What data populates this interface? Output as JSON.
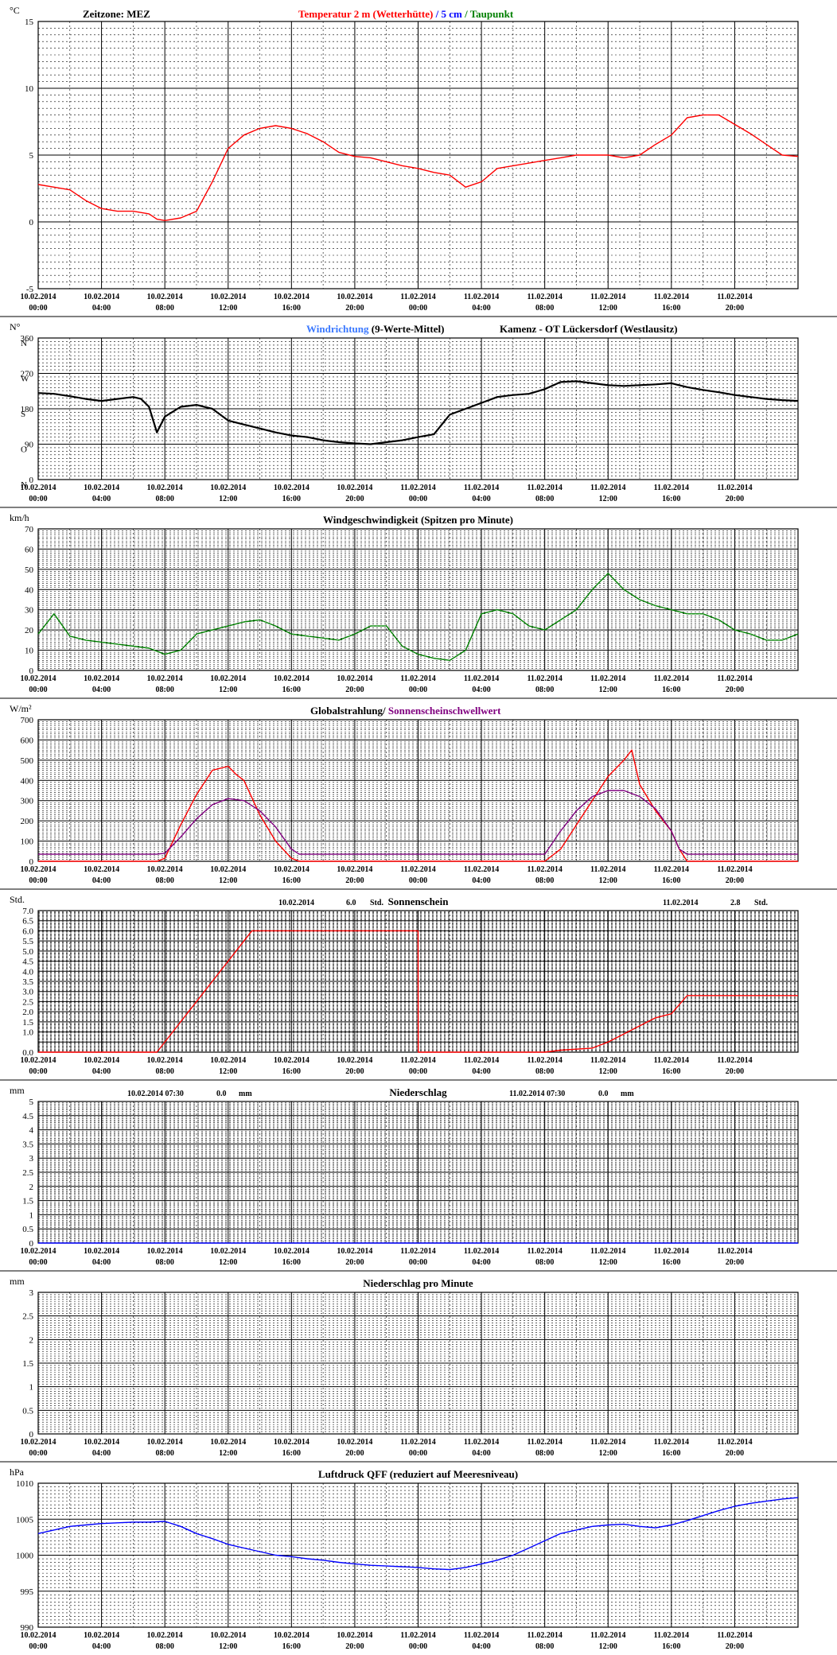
{
  "x_ticks": [
    "10.02.2014|00:00",
    "10.02.2014|04:00",
    "10.02.2014|08:00",
    "10.02.2014|12:00",
    "10.02.2014|16:00",
    "10.02.2014|20:00",
    "11.02.2014|00:00",
    "11.02.2014|04:00",
    "11.02.2014|08:00",
    "11.02.2014|12:00",
    "11.02.2014|16:00",
    "11.02.2014|20:00"
  ],
  "colors": {
    "red": "#ff0000",
    "blue": "#0000ff",
    "lightblue": "#3a78ff",
    "green": "#008000",
    "purple": "#800080",
    "black": "#000000",
    "grid": "#000000"
  },
  "chart_data": [
    {
      "type": "line",
      "unit": "°C",
      "zone_label": "Zeitzone: MEZ",
      "title_parts": [
        {
          "text": "Temperatur 2 m (Wetterhütte)",
          "color": "#ff0000"
        },
        {
          "text": "  /  ",
          "color": "#0000ff"
        },
        {
          "text": "5 cm",
          "color": "#0000ff"
        },
        {
          "text": " / ",
          "color": "#008000"
        },
        {
          "text": "Taupunkt",
          "color": "#008000"
        }
      ],
      "ylim": [
        -5,
        15
      ],
      "yticks": [
        -5,
        0,
        5,
        10,
        15
      ],
      "series": [
        {
          "color": "#ff0000",
          "x": [
            0,
            1,
            2,
            3,
            4,
            5,
            6,
            7,
            7.5,
            8,
            9,
            10,
            11,
            12,
            13,
            14,
            15,
            16,
            17,
            18,
            19,
            20,
            21,
            22,
            23,
            24,
            25,
            26,
            27,
            28,
            29,
            30,
            31,
            32,
            33,
            34,
            35,
            36,
            37,
            38,
            39,
            40,
            41,
            42,
            43,
            44,
            45,
            46,
            47,
            48
          ],
          "values": [
            2.8,
            2.6,
            2.4,
            1.6,
            1.0,
            0.8,
            0.8,
            0.6,
            0.2,
            0.1,
            0.3,
            0.8,
            3.0,
            5.5,
            6.5,
            7.0,
            7.2,
            7.0,
            6.6,
            6.0,
            5.2,
            4.9,
            4.8,
            4.5,
            4.2,
            4.0,
            3.7,
            3.5,
            2.6,
            3.0,
            4.0,
            4.2,
            4.4,
            4.6,
            4.8,
            5.0,
            5.0,
            5.0,
            4.8,
            5.0,
            5.8,
            6.5,
            7.8,
            8.0,
            8.0,
            7.3,
            6.6,
            5.8,
            5.0,
            4.9
          ]
        }
      ]
    },
    {
      "type": "line",
      "unit": "N°",
      "title_parts": [
        {
          "text": "Windrichtung",
          "color": "#3a78ff"
        },
        {
          "text": " (9-Werte-Mittel)",
          "color": "#000000"
        }
      ],
      "station": "Kamenz - OT Lückersdorf (Westlausitz)",
      "ylim": [
        0,
        360
      ],
      "yticks": [
        0,
        90,
        180,
        270,
        360
      ],
      "ytick_letters": [
        [
          0,
          "N"
        ],
        [
          90,
          "O"
        ],
        [
          180,
          "S"
        ],
        [
          270,
          "W"
        ],
        [
          360,
          "N"
        ]
      ],
      "series": [
        {
          "color": "#000000",
          "x": [
            0,
            1,
            2,
            3,
            4,
            5,
            6,
            6.5,
            7,
            7.5,
            8,
            9,
            10,
            11,
            12,
            13,
            14,
            15,
            16,
            17,
            18,
            19,
            20,
            21,
            22,
            23,
            24,
            25,
            26,
            27,
            28,
            29,
            30,
            31,
            32,
            33,
            34,
            35,
            36,
            37,
            38,
            39,
            40,
            41,
            42,
            43,
            44,
            45,
            46,
            47,
            48
          ],
          "values": [
            220,
            218,
            212,
            205,
            200,
            205,
            210,
            205,
            185,
            120,
            160,
            185,
            190,
            180,
            150,
            140,
            130,
            120,
            112,
            108,
            100,
            95,
            92,
            90,
            95,
            100,
            108,
            115,
            165,
            180,
            195,
            210,
            215,
            218,
            230,
            248,
            250,
            245,
            240,
            238,
            240,
            242,
            245,
            235,
            228,
            222,
            215,
            210,
            205,
            202,
            200
          ]
        }
      ]
    },
    {
      "type": "line",
      "unit": "km/h",
      "title": "Windgeschwindigkeit (Spitzen pro Minute)",
      "ylim": [
        0,
        70
      ],
      "yticks": [
        0,
        10,
        20,
        30,
        40,
        50,
        60,
        70
      ],
      "series": [
        {
          "color": "#008000",
          "x": [
            0,
            1,
            2,
            3,
            4,
            5,
            6,
            7,
            8,
            9,
            10,
            11,
            12,
            13,
            14,
            15,
            16,
            17,
            18,
            19,
            20,
            21,
            22,
            23,
            24,
            25,
            26,
            27,
            28,
            29,
            30,
            31,
            32,
            33,
            34,
            35,
            36,
            37,
            38,
            39,
            40,
            41,
            42,
            43,
            44,
            45,
            46,
            47,
            48
          ],
          "values": [
            18,
            28,
            17,
            15,
            14,
            13,
            12,
            11,
            8,
            10,
            18,
            20,
            22,
            24,
            25,
            22,
            18,
            17,
            16,
            15,
            18,
            22,
            22,
            12,
            8,
            6,
            5,
            10,
            28,
            30,
            28,
            22,
            20,
            25,
            30,
            40,
            48,
            40,
            35,
            32,
            30,
            28,
            28,
            25,
            20,
            18,
            15,
            15,
            18
          ]
        }
      ]
    },
    {
      "type": "line",
      "unit": "W/m²",
      "title_parts": [
        {
          "text": "Globalstrahlung/ ",
          "color": "#000000"
        },
        {
          "text": "Sonnenscheinschwellwert",
          "color": "#800080"
        }
      ],
      "ylim": [
        0,
        700
      ],
      "yticks": [
        0,
        100,
        200,
        300,
        400,
        500,
        600,
        700
      ],
      "series": [
        {
          "color": "#ff0000",
          "x": [
            0,
            7.5,
            8,
            9,
            10,
            11,
            12,
            12.5,
            13,
            14,
            15,
            16,
            16.5,
            32,
            33,
            34,
            35,
            36,
            37,
            37.5,
            38,
            39,
            40,
            40.5,
            41,
            48
          ],
          "values": [
            0,
            0,
            15,
            180,
            330,
            450,
            470,
            430,
            400,
            230,
            100,
            15,
            0,
            0,
            60,
            180,
            300,
            420,
            500,
            550,
            380,
            250,
            150,
            60,
            0,
            0
          ]
        },
        {
          "color": "#800080",
          "x": [
            0,
            7.5,
            8,
            9,
            10,
            11,
            12,
            13,
            14,
            15,
            16,
            16.5,
            32,
            33,
            34,
            35,
            36,
            37,
            38,
            39,
            40,
            40.5,
            41,
            48
          ],
          "values": [
            35,
            35,
            40,
            120,
            210,
            280,
            310,
            300,
            250,
            170,
            60,
            35,
            35,
            150,
            250,
            320,
            350,
            350,
            320,
            260,
            150,
            60,
            35,
            35
          ]
        }
      ]
    },
    {
      "type": "line",
      "unit": "Std.",
      "title": "Sonnenschein",
      "annotations": [
        {
          "date": "10.02.2014",
          "value": "6.0",
          "unit": "Std."
        },
        {
          "date": "11.02.2014",
          "value": "2.8",
          "unit": "Std."
        }
      ],
      "ylim": [
        0,
        7
      ],
      "yticks": [
        0.0,
        0.5,
        1.0,
        1.5,
        2.0,
        2.5,
        3.0,
        3.5,
        4.0,
        4.5,
        5.0,
        5.5,
        6.0,
        6.5,
        7.0
      ],
      "ytick_labels": [
        "0.0",
        "",
        "1.0",
        "1.5",
        "2.0",
        "2.5",
        "3.0",
        "3.5",
        "4.0",
        "4.5",
        "5.0",
        "5.5",
        "6.0",
        "6.5",
        "7.0"
      ],
      "series": [
        {
          "color": "#ff0000",
          "x": [
            0,
            7.5,
            13.5,
            24,
            24.01,
            32,
            33,
            35,
            36,
            37,
            38,
            39,
            40,
            41,
            48
          ],
          "values": [
            0,
            0,
            6.0,
            6.0,
            0,
            0,
            0.1,
            0.2,
            0.5,
            0.9,
            1.3,
            1.7,
            1.9,
            2.8,
            2.8
          ]
        }
      ]
    },
    {
      "type": "line",
      "unit": "mm",
      "title": "Niederschlag",
      "annotations": [
        {
          "date": "10.02.2014 07:30",
          "value": "0.0",
          "unit": "mm"
        },
        {
          "date": "11.02.2014 07:30",
          "value": "0.0",
          "unit": "mm"
        }
      ],
      "ylim": [
        0,
        5
      ],
      "yticks": [
        0.0,
        0.5,
        1.0,
        1.5,
        2.0,
        2.5,
        3.0,
        3.5,
        4.0,
        4.5,
        5.0
      ],
      "series": [
        {
          "color": "#0000ff",
          "x": [
            0,
            48
          ],
          "values": [
            0,
            0
          ]
        }
      ]
    },
    {
      "type": "line",
      "unit": "mm",
      "title": "Niederschlag pro Minute",
      "ylim": [
        0,
        3
      ],
      "yticks": [
        0.0,
        0.5,
        1.0,
        1.5,
        2.0,
        2.5,
        3.0
      ],
      "series": []
    },
    {
      "type": "line",
      "unit": "hPa",
      "title": "Luftdruck QFF (reduziert auf Meeresniveau)",
      "ylim": [
        990,
        1010
      ],
      "yticks": [
        990,
        995,
        1000,
        1005,
        1010
      ],
      "series": [
        {
          "color": "#0000ff",
          "x": [
            0,
            1,
            2,
            3,
            4,
            5,
            6,
            7,
            8,
            9,
            10,
            11,
            12,
            13,
            14,
            15,
            16,
            17,
            18,
            19,
            20,
            21,
            22,
            23,
            24,
            25,
            26,
            27,
            28,
            29,
            30,
            31,
            32,
            33,
            34,
            35,
            36,
            37,
            38,
            39,
            40,
            41,
            42,
            43,
            44,
            45,
            46,
            47,
            48
          ],
          "values": [
            1003,
            1003.5,
            1004,
            1004.2,
            1004.4,
            1004.5,
            1004.6,
            1004.6,
            1004.7,
            1004,
            1003,
            1002.3,
            1001.5,
            1001,
            1000.5,
            1000,
            999.8,
            999.5,
            999.3,
            999,
            998.8,
            998.6,
            998.5,
            998.4,
            998.3,
            998.1,
            998,
            998.3,
            998.8,
            999.3,
            1000,
            1001,
            1002,
            1003,
            1003.5,
            1004,
            1004.2,
            1004.3,
            1004,
            1003.8,
            1004.2,
            1004.8,
            1005.5,
            1006.2,
            1006.8,
            1007.2,
            1007.5,
            1007.8,
            1008
          ]
        }
      ]
    }
  ]
}
